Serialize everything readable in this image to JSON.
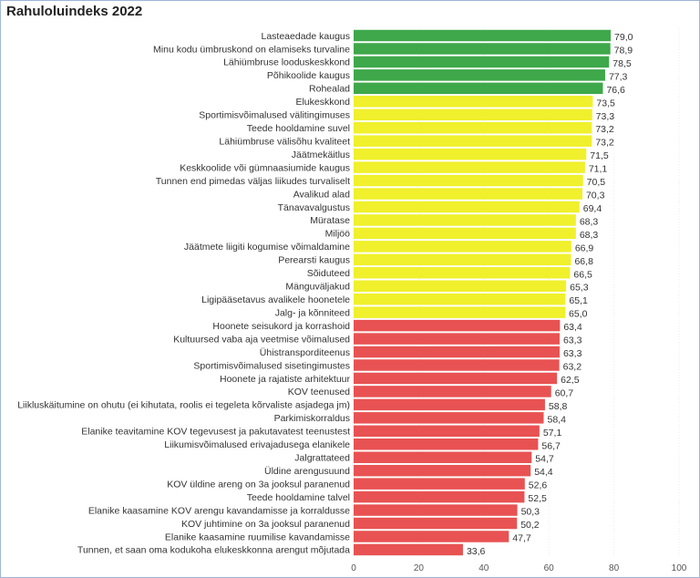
{
  "chart_data": {
    "type": "bar",
    "orientation": "horizontal",
    "title": "Rahuloluindeks 2022",
    "xlim": [
      0,
      100
    ],
    "xticks": [
      "0",
      "20",
      "40",
      "60",
      "80",
      "100"
    ],
    "grid": true,
    "colors": {
      "high": "#3ea84a",
      "mid": "#f0f02c",
      "low": "#e85252"
    },
    "categories": [
      "Lasteaedade kaugus",
      "Minu kodu ümbruskond on elamiseks turvaline",
      "Lähiümbruse looduskeskkond",
      "Põhikoolide kaugus",
      "Rohealad",
      "Elukeskkond",
      "Sportimisvõimalused välitingimuses",
      "Teede hooldamine suvel",
      "Lähiümbruse välisõhu kvaliteet",
      "Jäätmekäitlus",
      "Keskkoolide või gümnaasiumide kaugus",
      "Tunnen end pimedas väljas liikudes turvaliselt",
      "Avalikud alad",
      "Tänavavalgustus",
      "Müratase",
      "Miljöö",
      "Jäätmete liigiti kogumise võimaldamine",
      "Perearsti kaugus",
      "Sõiduteed",
      "Mänguväljakud",
      "Ligipääsetavus avalikele hoonetele",
      "Jalg- ja kõnniteed",
      "Hoonete seisukord ja korrashoid",
      "Kultuursed vaba aja veetmise võimalused",
      "Ühistranspordi­teenus",
      "Sportimisvõimalused sisetingimustes",
      "Hoonete ja rajatiste arhitektuur",
      "KOV teenused",
      "Liikluskäitumine on ohutu (ei kihutata, roolis ei tegeleta kõrvaliste asjadega jm)",
      "Parkimiskorraldus",
      "Elanike teavitamine KOV tegevusest ja pakutavatest teenustest",
      "Liikumisvõimalused erivajadusega elanikele",
      "Jalgrattateed",
      "Üldine arengusuund",
      "KOV üldine areng on 3a jooksul paranenud",
      "Teede hooldamine talvel",
      "Elanike kaasamine KOV arengu kavandamisse ja korraldusse",
      "KOV juhtimine on 3a jooksul paranenud",
      "Elanike kaasamine ruumilise kavandamisse",
      "Tunnen, et saan oma kodukoha elukeskkonna arengut mõjutada"
    ],
    "values": [
      79.0,
      78.9,
      78.5,
      77.3,
      76.6,
      73.5,
      73.3,
      73.2,
      73.2,
      71.5,
      71.1,
      70.5,
      70.3,
      69.4,
      68.3,
      68.3,
      66.9,
      66.8,
      66.5,
      65.3,
      65.1,
      65.0,
      63.4,
      63.3,
      63.3,
      63.2,
      62.5,
      60.7,
      58.8,
      58.4,
      57.1,
      56.7,
      54.7,
      54.4,
      52.6,
      52.5,
      50.3,
      50.2,
      47.7,
      33.6
    ],
    "value_labels": [
      "79,0",
      "78,9",
      "78,5",
      "77,3",
      "76,6",
      "73,5",
      "73,3",
      "73,2",
      "73,2",
      "71,5",
      "71,1",
      "70,5",
      "70,3",
      "69,4",
      "68,3",
      "68,3",
      "66,9",
      "66,8",
      "66,5",
      "65,3",
      "65,1",
      "65,0",
      "63,4",
      "63,3",
      "63,3",
      "63,2",
      "62,5",
      "60,7",
      "58,8",
      "58,4",
      "57,1",
      "56,7",
      "54,7",
      "54,4",
      "52,6",
      "52,5",
      "50,3",
      "50,2",
      "47,7",
      "33,6"
    ],
    "color_groups": [
      "high",
      "high",
      "high",
      "high",
      "high",
      "mid",
      "mid",
      "mid",
      "mid",
      "mid",
      "mid",
      "mid",
      "mid",
      "mid",
      "mid",
      "mid",
      "mid",
      "mid",
      "mid",
      "mid",
      "mid",
      "mid",
      "low",
      "low",
      "low",
      "low",
      "low",
      "low",
      "low",
      "low",
      "low",
      "low",
      "low",
      "low",
      "low",
      "low",
      "low",
      "low",
      "low",
      "low"
    ]
  }
}
